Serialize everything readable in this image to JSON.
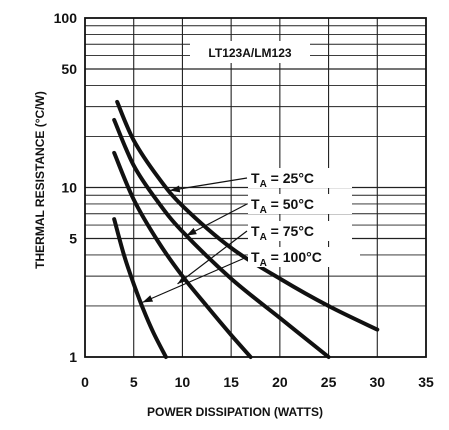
{
  "chart_data": {
    "type": "line",
    "title": "",
    "xlabel": "POWER DISSIPATION (WATTS)",
    "ylabel": "THERMAL RESISTANCE (°C/W)",
    "xlim": [
      0,
      35
    ],
    "ylim": [
      1,
      100
    ],
    "y_scale": "log",
    "grid": true,
    "x_ticks": [
      "0",
      "5",
      "10",
      "15",
      "20",
      "25",
      "30",
      "35"
    ],
    "y_ticks": [
      "1",
      "5",
      "10",
      "50",
      "100"
    ],
    "inset_label": "LT123A/LM123",
    "series": [
      {
        "name": "TA = 25°C",
        "label_main": "T",
        "label_sub": "A",
        "label_rest": " = 25°C",
        "x": [
          3.3,
          5,
          7.5,
          10,
          15,
          20,
          25,
          30
        ],
        "y": [
          32,
          19,
          11.5,
          7.8,
          4.4,
          2.9,
          2.0,
          1.45
        ]
      },
      {
        "name": "TA = 50°C",
        "label_main": "T",
        "label_sub": "A",
        "label_rest": " = 50°C",
        "x": [
          3,
          5,
          7.5,
          10,
          15,
          20,
          25
        ],
        "y": [
          25,
          13.5,
          8.2,
          5.5,
          2.9,
          1.7,
          1.0
        ]
      },
      {
        "name": "TA = 75°C",
        "label_main": "T",
        "label_sub": "A",
        "label_rest": " = 75°C",
        "x": [
          3,
          5,
          7.5,
          10,
          12.5,
          15,
          17
        ],
        "y": [
          16,
          8.5,
          4.8,
          3.0,
          2.0,
          1.35,
          1.0
        ]
      },
      {
        "name": "TA = 100°C",
        "label_main": "T",
        "label_sub": "A",
        "label_rest": " = 100°C",
        "x": [
          3,
          4,
          5,
          6,
          7,
          8.3
        ],
        "y": [
          6.5,
          4.0,
          2.7,
          1.9,
          1.4,
          1.0
        ]
      }
    ]
  }
}
